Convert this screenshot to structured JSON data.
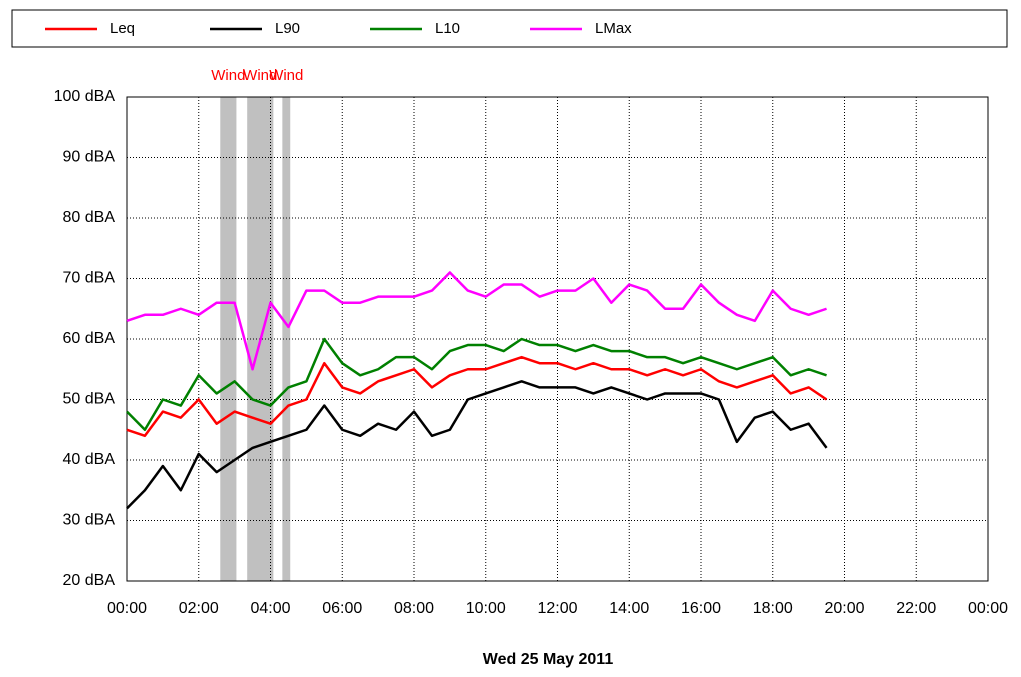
{
  "chart_data": {
    "type": "line",
    "xlabel": "Wed 25 May 2011",
    "x": [
      0,
      0.5,
      1,
      1.5,
      2,
      2.5,
      3,
      3.5,
      4,
      4.5,
      5,
      5.5,
      6,
      6.5,
      7,
      7.5,
      8,
      8.5,
      9,
      9.5,
      10,
      10.5,
      11,
      11.5,
      12,
      12.5,
      13,
      13.5,
      14,
      14.5,
      15,
      15.5,
      16,
      16.5,
      17,
      17.5,
      18,
      18.5,
      19,
      19.5
    ],
    "series": [
      {
        "name": "Leq",
        "color": "#ff0000",
        "values": [
          45,
          44,
          48,
          47,
          50,
          46,
          48,
          47,
          46,
          49,
          50,
          56,
          52,
          51,
          53,
          54,
          55,
          52,
          54,
          55,
          55,
          56,
          57,
          56,
          56,
          55,
          56,
          55,
          55,
          54,
          55,
          54,
          55,
          53,
          52,
          53,
          54,
          51,
          52,
          50
        ]
      },
      {
        "name": "L90",
        "color": "#000000",
        "values": [
          32,
          35,
          39,
          35,
          41,
          38,
          40,
          42,
          43,
          44,
          45,
          49,
          45,
          44,
          46,
          45,
          48,
          44,
          45,
          50,
          51,
          52,
          53,
          52,
          52,
          52,
          51,
          52,
          51,
          50,
          51,
          51,
          51,
          50,
          43,
          47,
          48,
          45,
          46,
          42
        ]
      },
      {
        "name": "L10",
        "color": "#008000",
        "values": [
          48,
          45,
          50,
          49,
          54,
          51,
          53,
          50,
          49,
          52,
          53,
          60,
          56,
          54,
          55,
          57,
          57,
          55,
          58,
          59,
          59,
          58,
          60,
          59,
          59,
          58,
          59,
          58,
          58,
          57,
          57,
          56,
          57,
          56,
          55,
          56,
          57,
          54,
          55,
          54
        ]
      },
      {
        "name": "LMax",
        "color": "#ff00ff",
        "values": [
          63,
          64,
          64,
          65,
          64,
          66,
          66,
          55,
          66,
          62,
          68,
          68,
          66,
          66,
          67,
          67,
          67,
          68,
          71,
          68,
          67,
          69,
          69,
          67,
          68,
          68,
          70,
          66,
          69,
          68,
          65,
          65,
          69,
          66,
          64,
          63,
          68,
          65,
          64,
          65
        ]
      }
    ],
    "annotations": [
      {
        "label": "Wind",
        "x": [
          2.6,
          3.05
        ]
      },
      {
        "label": "Wind",
        "x": [
          3.35,
          4.08
        ]
      },
      {
        "label": "Wind",
        "x": [
          4.33,
          4.55
        ]
      }
    ],
    "xlim": [
      0,
      24
    ],
    "xticks": [
      {
        "value": 0,
        "label": "00:00"
      },
      {
        "value": 2,
        "label": "02:00"
      },
      {
        "value": 4,
        "label": "04:00"
      },
      {
        "value": 6,
        "label": "06:00"
      },
      {
        "value": 8,
        "label": "08:00"
      },
      {
        "value": 10,
        "label": "10:00"
      },
      {
        "value": 12,
        "label": "12:00"
      },
      {
        "value": 14,
        "label": "14:00"
      },
      {
        "value": 16,
        "label": "16:00"
      },
      {
        "value": 18,
        "label": "18:00"
      },
      {
        "value": 20,
        "label": "20:00"
      },
      {
        "value": 22,
        "label": "22:00"
      },
      {
        "value": 24,
        "label": "00:00"
      }
    ],
    "ylim": [
      20,
      100
    ],
    "yticks": [
      {
        "value": 20,
        "label": "20 dBA"
      },
      {
        "value": 30,
        "label": "30 dBA"
      },
      {
        "value": 40,
        "label": "40 dBA"
      },
      {
        "value": 50,
        "label": "50 dBA"
      },
      {
        "value": 60,
        "label": "60 dBA"
      },
      {
        "value": 70,
        "label": "70 dBA"
      },
      {
        "value": 80,
        "label": "80 dBA"
      },
      {
        "value": 90,
        "label": "90 dBA"
      },
      {
        "value": 100,
        "label": "100 dBA"
      }
    ],
    "grid": true,
    "legend": "top"
  }
}
